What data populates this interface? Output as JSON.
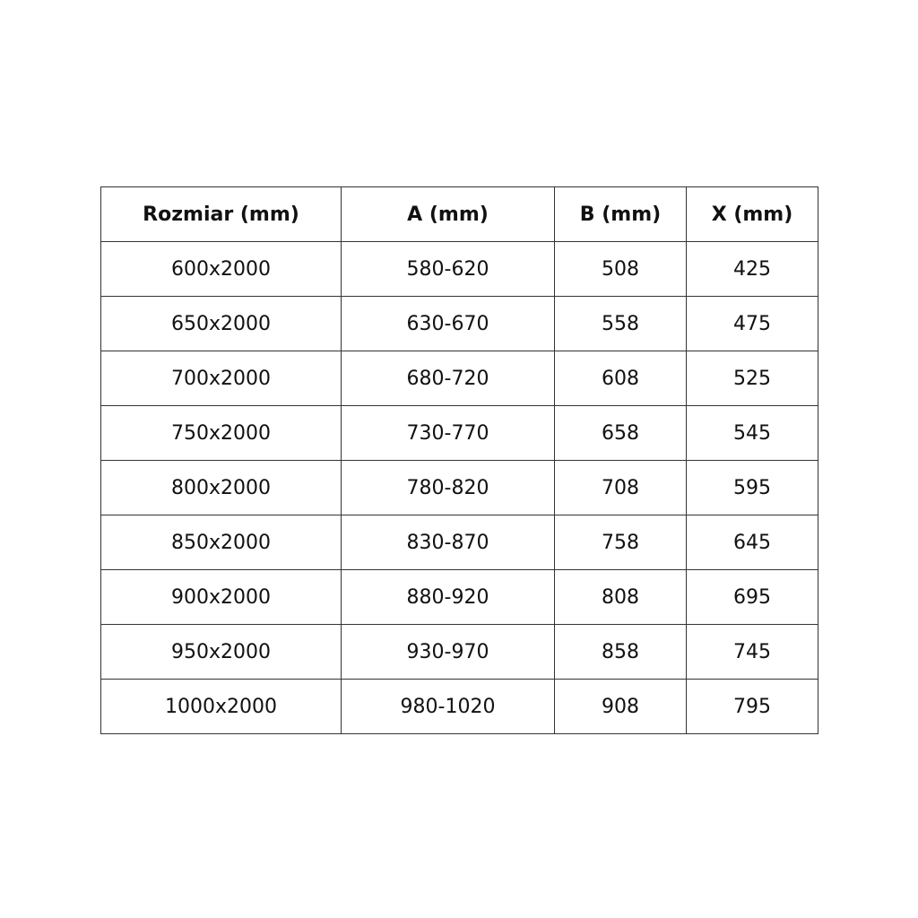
{
  "table": {
    "headers": [
      "Rozmiar (mm)",
      "A (mm)",
      "B (mm)",
      "X (mm)"
    ],
    "rows": [
      [
        "600x2000",
        "580-620",
        "508",
        "425"
      ],
      [
        "650x2000",
        "630-670",
        "558",
        "475"
      ],
      [
        "700x2000",
        "680-720",
        "608",
        "525"
      ],
      [
        "750x2000",
        "730-770",
        "658",
        "545"
      ],
      [
        "800x2000",
        "780-820",
        "708",
        "595"
      ],
      [
        "850x2000",
        "830-870",
        "758",
        "645"
      ],
      [
        "900x2000",
        "880-920",
        "808",
        "695"
      ],
      [
        "950x2000",
        "930-970",
        "858",
        "745"
      ],
      [
        "1000x2000",
        "980-1020",
        "908",
        "795"
      ]
    ]
  }
}
